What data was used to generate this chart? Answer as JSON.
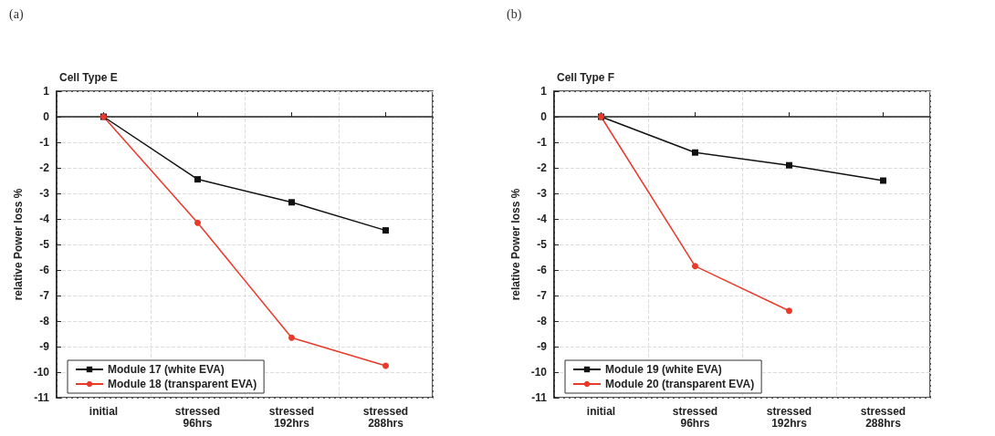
{
  "chart_data": [
    {
      "type": "line",
      "title": "Cell Type E",
      "annotations": [
        "(a)"
      ],
      "ylabel": "relative Power loss %",
      "categories": [
        "initial",
        "stressed\n96hrs",
        "stressed\n192hrs",
        "stressed\n288hrs"
      ],
      "series": [
        {
          "name": "Module 17 (white EVA)",
          "color": "#111111",
          "marker": "square",
          "values": [
            0,
            -2.45,
            -3.35,
            -4.45
          ]
        },
        {
          "name": "Module 18 (transparent EVA)",
          "color": "#e8392a",
          "marker": "circle",
          "values": [
            0,
            -4.15,
            -8.65,
            -9.75
          ]
        }
      ],
      "ylim": [
        -11,
        1
      ],
      "yticks": [
        -11,
        -10,
        -9,
        -8,
        -7,
        -6,
        -5,
        -4,
        -3,
        -2,
        -1,
        0,
        1
      ],
      "grid": true,
      "legend": "bottom left",
      "line_style": "solid"
    },
    {
      "type": "line",
      "title": "Cell Type F",
      "annotations": [
        "(b)"
      ],
      "ylabel": "relative Power loss %",
      "categories": [
        "initial",
        "stressed\n96hrs",
        "stressed\n192hrs",
        "stressed\n288hrs"
      ],
      "series": [
        {
          "name": "Module 19 (white EVA)",
          "color": "#111111",
          "marker": "square",
          "values": [
            0,
            -1.4,
            -1.9,
            -2.5
          ]
        },
        {
          "name": "Module 20 (transparent EVA)",
          "color": "#e8392a",
          "marker": "circle",
          "values": [
            0,
            -5.85,
            -7.6,
            null
          ]
        }
      ],
      "ylim": [
        -11,
        1
      ],
      "yticks": [
        -11,
        -10,
        -9,
        -8,
        -7,
        -6,
        -5,
        -4,
        -3,
        -2,
        -1,
        0,
        1
      ],
      "grid": true,
      "legend": "bottom left",
      "line_style": "solid"
    }
  ]
}
